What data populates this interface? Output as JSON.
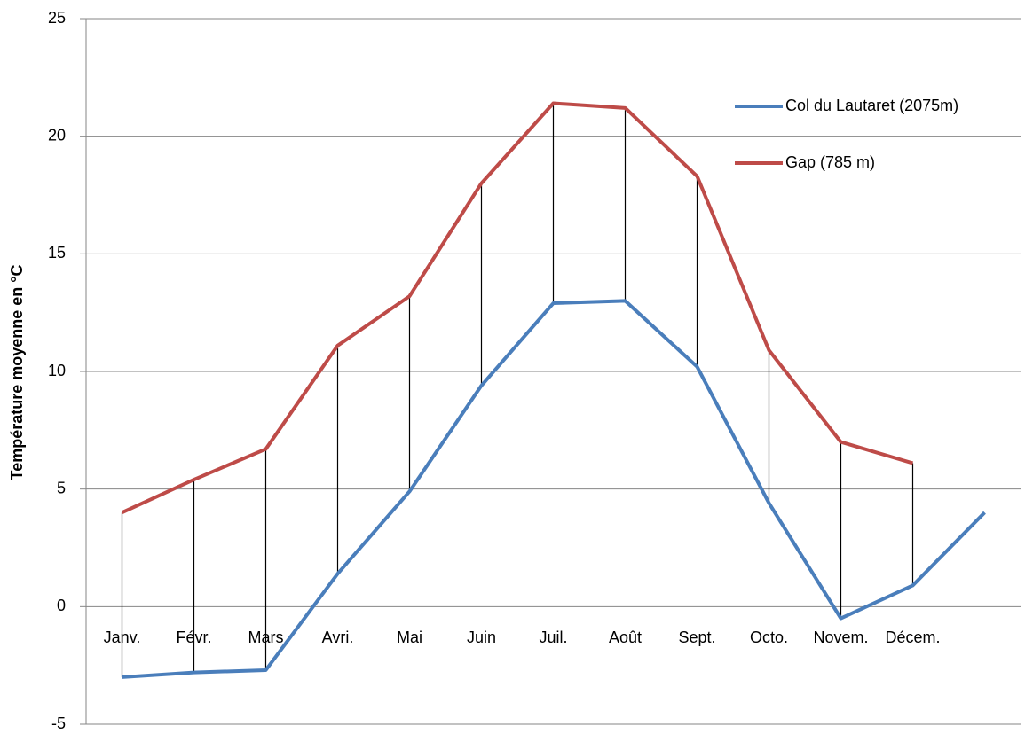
{
  "chart_data": {
    "type": "line",
    "y_label": "Température moyenne en °C",
    "categories": [
      "Janv.",
      "Févr.",
      "Mars",
      "Avri.",
      "Mai",
      "Juin",
      "Juil.",
      "Août",
      "Sept.",
      "Octo.",
      "Novem.",
      "Décem.",
      null
    ],
    "series": [
      {
        "name": "Col du Lautaret (2075m)",
        "color": "#4a7ebb",
        "values": [
          -3.0,
          -2.8,
          -2.7,
          1.4,
          4.9,
          9.4,
          12.9,
          13.0,
          10.2,
          4.4,
          -0.5,
          0.9,
          4.0
        ]
      },
      {
        "name": "Gap (785 m)",
        "color": "#be4b48",
        "values": [
          4.0,
          5.4,
          6.7,
          11.1,
          13.2,
          18.0,
          21.4,
          21.2,
          18.3,
          10.9,
          7.0,
          6.1,
          null
        ]
      }
    ],
    "ylim": [
      -5,
      25
    ],
    "yticks": [
      -5,
      0,
      5,
      10,
      15,
      20,
      25
    ],
    "grid": true,
    "high_low_lines": true,
    "legend": "top-right"
  }
}
